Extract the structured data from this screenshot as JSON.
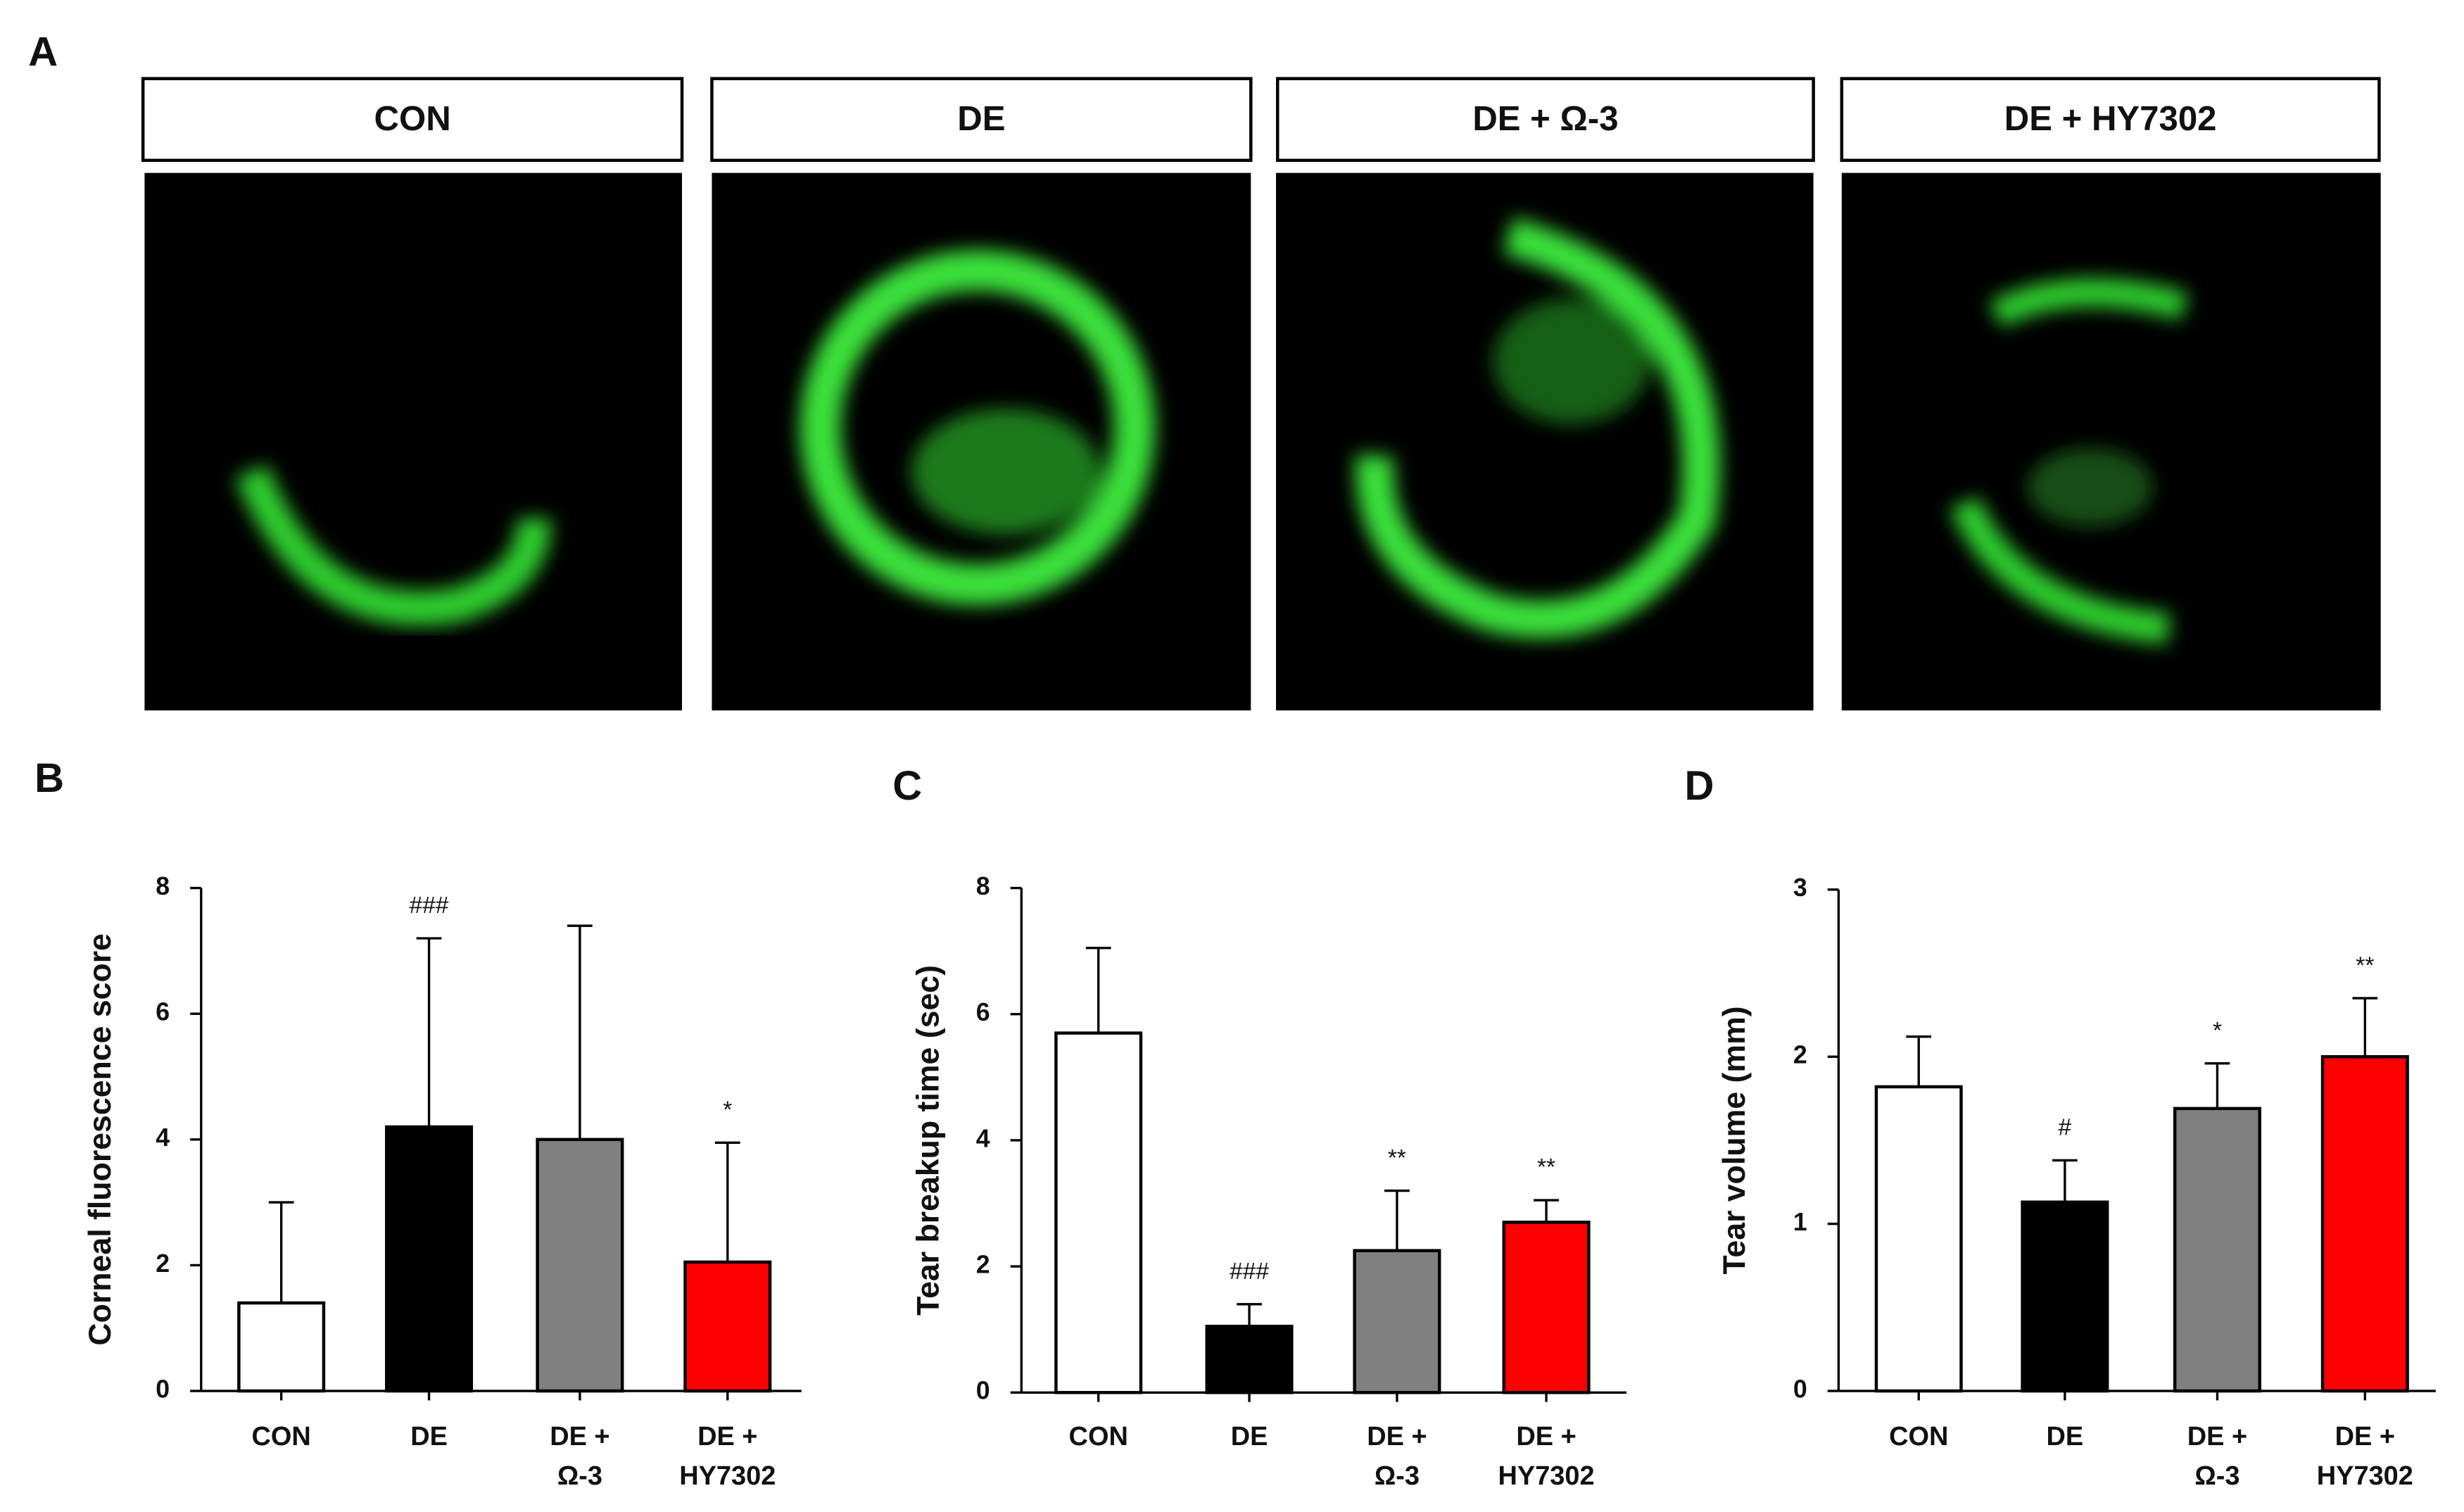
{
  "figure_a": {
    "panel": "A",
    "titles": [
      "CON",
      "DE",
      "DE + Ω-3",
      "DE + HY7302"
    ]
  },
  "chart_data": [
    {
      "type": "bar",
      "panel": "B",
      "ylabel": "Corneal fluorescence score",
      "categories": [
        [
          "CON"
        ],
        [
          "DE"
        ],
        [
          "DE +",
          "Ω-3"
        ],
        [
          "DE +",
          "HY7302"
        ]
      ],
      "values": [
        1.4,
        4.2,
        4.0,
        2.05
      ],
      "errors": [
        1.6,
        3.0,
        3.4,
        1.9
      ],
      "colors": [
        "#ffffff",
        "#000000",
        "#808080",
        "#ff0000"
      ],
      "annotations": [
        null,
        "###",
        null,
        "*"
      ],
      "ylim": [
        0,
        8
      ],
      "yticks": [
        0,
        2,
        4,
        6,
        8
      ]
    },
    {
      "type": "bar",
      "panel": "C",
      "ylabel": "Tear breakup time (sec)",
      "categories": [
        [
          "CON"
        ],
        [
          "DE"
        ],
        [
          "DE +",
          "Ω-3"
        ],
        [
          "DE +",
          "HY7302"
        ]
      ],
      "values": [
        5.7,
        1.05,
        2.25,
        2.7
      ],
      "errors": [
        1.35,
        0.35,
        0.95,
        0.35
      ],
      "colors": [
        "#ffffff",
        "#000000",
        "#808080",
        "#ff0000"
      ],
      "annotations": [
        null,
        "###",
        "**",
        "**"
      ],
      "ylim": [
        0,
        8
      ],
      "yticks": [
        0,
        2,
        4,
        6,
        8
      ]
    },
    {
      "type": "bar",
      "panel": "D",
      "ylabel": "Tear  volume (mm)",
      "categories": [
        [
          "CON"
        ],
        [
          "DE"
        ],
        [
          "DE +",
          "Ω-3"
        ],
        [
          "DE +",
          "HY7302"
        ]
      ],
      "values": [
        1.82,
        1.13,
        1.69,
        2.0
      ],
      "errors": [
        0.3,
        0.25,
        0.27,
        0.35
      ],
      "colors": [
        "#ffffff",
        "#000000",
        "#808080",
        "#ff0000"
      ],
      "annotations": [
        null,
        "#",
        "*",
        "**"
      ],
      "ylim": [
        0,
        3
      ],
      "yticks": [
        0,
        1,
        2,
        3
      ]
    }
  ]
}
